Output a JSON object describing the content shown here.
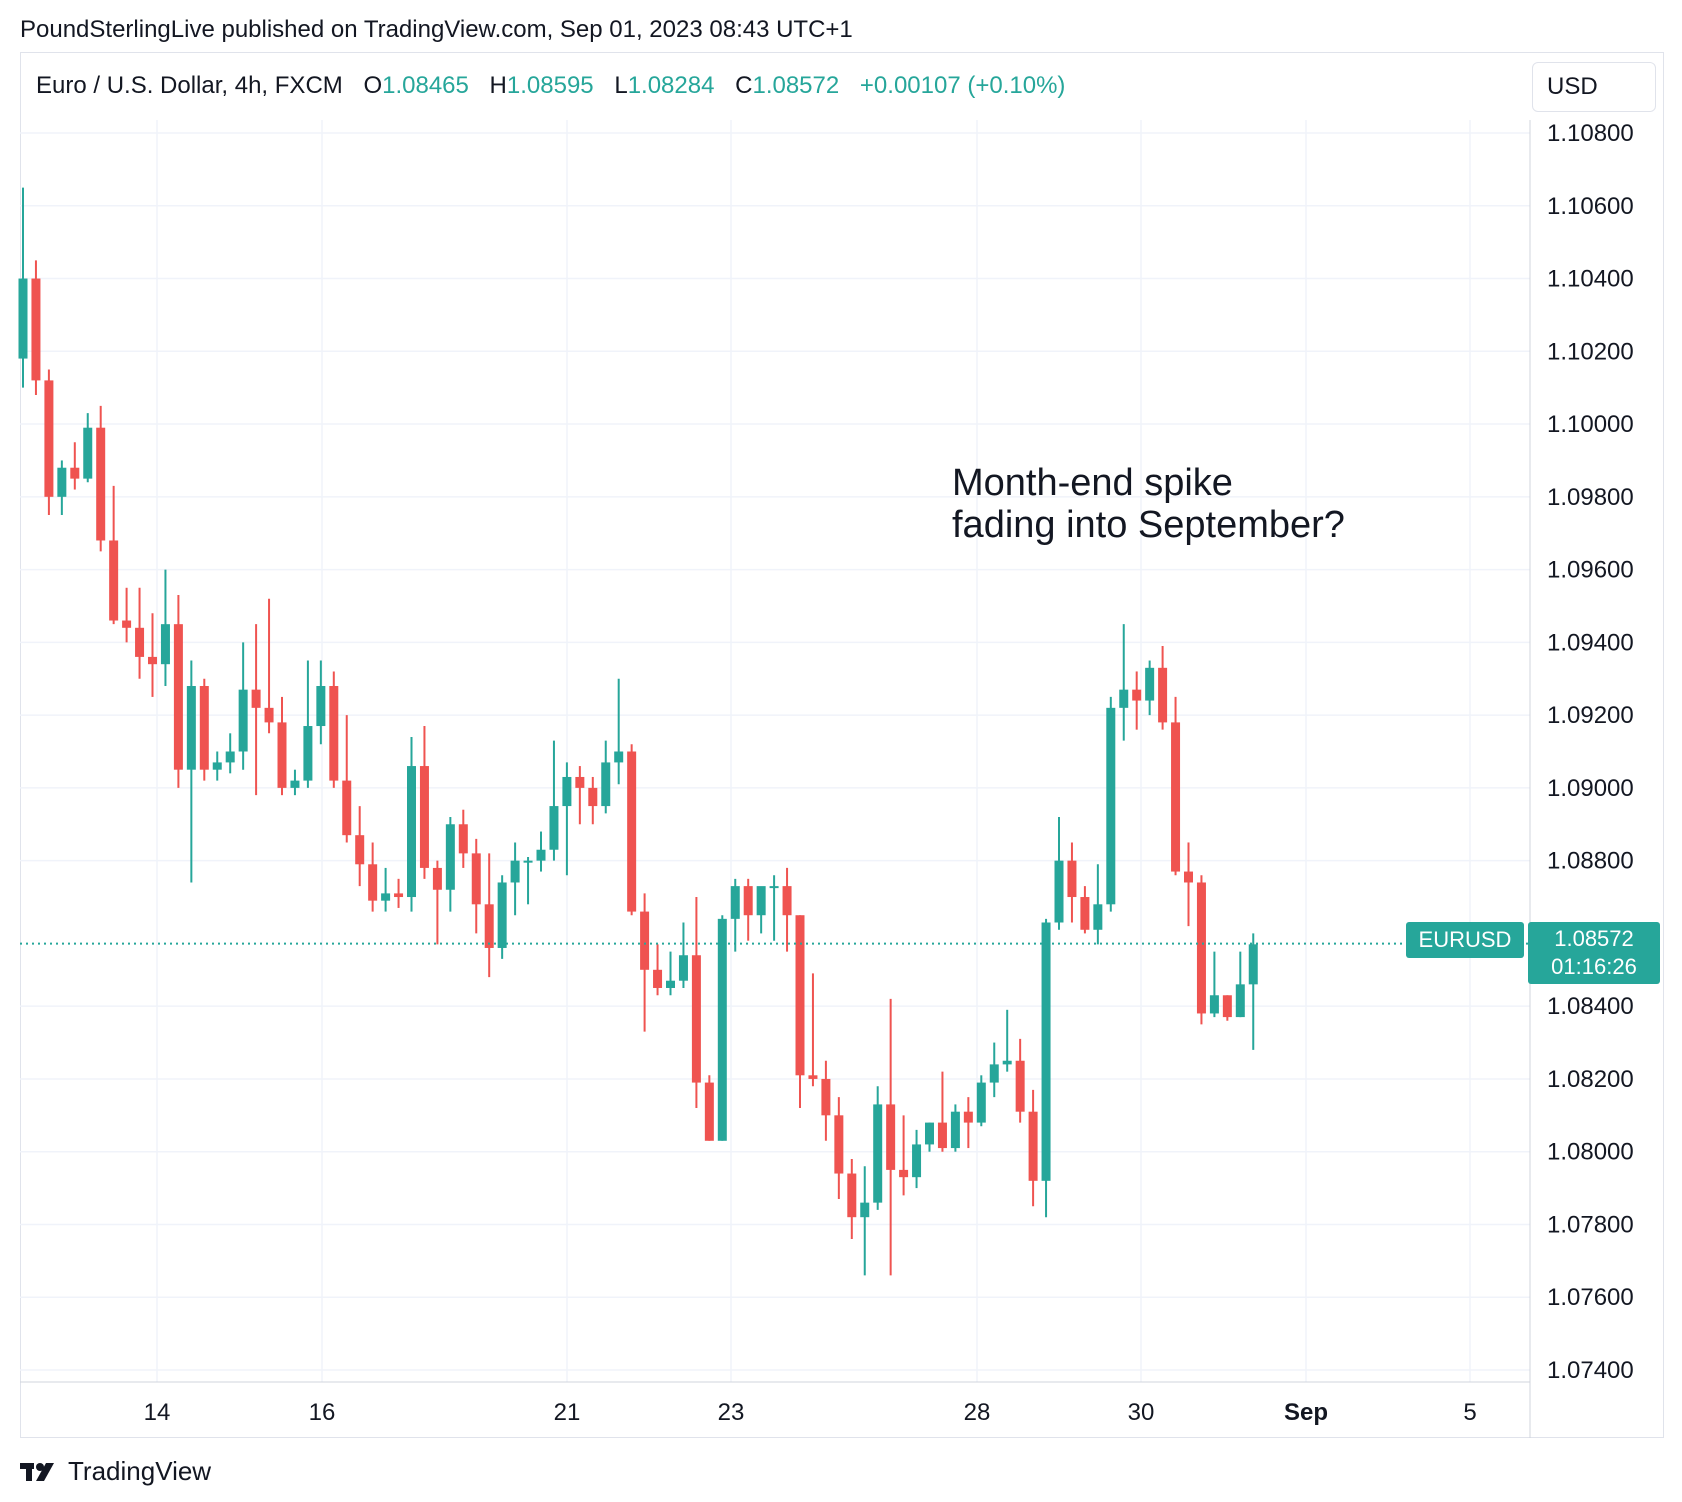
{
  "header": {
    "published_by": "PoundSterlingLive published on TradingView.com, Sep 01, 2023 08:43 UTC+1"
  },
  "legend": {
    "symbol": "Euro / U.S. Dollar, 4h, FXCM",
    "open_label": "O",
    "open": "1.08465",
    "high_label": "H",
    "high": "1.08595",
    "low_label": "L",
    "low": "1.08284",
    "close_label": "C",
    "close": "1.08572",
    "change": "+0.00107 (+0.10%)"
  },
  "currency_button": "USD",
  "annotation": {
    "line1": "Month-end spike",
    "line2": "fading into September?"
  },
  "last_price": {
    "symbol": "EURUSD",
    "price": "1.08572",
    "countdown": "01:16:26"
  },
  "footer": {
    "brand": "TradingView",
    "logo_icon": "tradingview-logo-icon"
  },
  "colors": {
    "up": "#26a69a",
    "down": "#ef5350",
    "grid": "#f0f3fa",
    "axis_text": "#131722"
  },
  "chart_data": {
    "type": "candlestick",
    "title": "Euro / U.S. Dollar, 4h, FXCM",
    "ylim": [
      1.074,
      1.108
    ],
    "y_ticks": [
      "1.10800",
      "1.10600",
      "1.10400",
      "1.10200",
      "1.10000",
      "1.09800",
      "1.09600",
      "1.09400",
      "1.09200",
      "1.09000",
      "1.08800",
      "1.08400",
      "1.08200",
      "1.08000",
      "1.07800",
      "1.07600",
      "1.07400"
    ],
    "x_ticks": [
      "14",
      "16",
      "21",
      "23",
      "28",
      "30",
      "Sep",
      "5"
    ],
    "grid": true,
    "candles": [
      [
        1.1018,
        1.1065,
        1.101,
        1.104
      ],
      [
        1.104,
        1.1045,
        1.1008,
        1.1012
      ],
      [
        1.1012,
        1.1015,
        1.0975,
        1.098
      ],
      [
        1.098,
        1.099,
        1.0975,
        1.0988
      ],
      [
        1.0988,
        1.0995,
        1.0982,
        1.0985
      ],
      [
        1.0985,
        1.1003,
        1.0984,
        1.0999
      ],
      [
        1.0999,
        1.1005,
        1.0965,
        1.0968
      ],
      [
        1.0968,
        1.0983,
        1.0945,
        1.0946
      ],
      [
        1.0946,
        1.0955,
        1.094,
        1.0944
      ],
      [
        1.0944,
        1.0955,
        1.093,
        1.0936
      ],
      [
        1.0936,
        1.0948,
        1.0925,
        1.0934
      ],
      [
        1.0934,
        1.096,
        1.0928,
        1.0945
      ],
      [
        1.0945,
        1.0953,
        1.09,
        1.0905
      ],
      [
        1.0905,
        1.0935,
        1.0874,
        1.0928
      ],
      [
        1.0928,
        1.093,
        1.0902,
        1.0905
      ],
      [
        1.0905,
        1.091,
        1.0902,
        1.0907
      ],
      [
        1.0907,
        1.0915,
        1.0904,
        1.091
      ],
      [
        1.091,
        1.094,
        1.0905,
        1.0927
      ],
      [
        1.0927,
        1.0945,
        1.0898,
        1.0922
      ],
      [
        1.0922,
        1.0952,
        1.0915,
        1.0918
      ],
      [
        1.0918,
        1.0925,
        1.0898,
        1.09
      ],
      [
        1.09,
        1.0905,
        1.0898,
        1.0902
      ],
      [
        1.0902,
        1.0935,
        1.09,
        1.0917
      ],
      [
        1.0917,
        1.0935,
        1.0912,
        1.0928
      ],
      [
        1.0928,
        1.0932,
        1.09,
        1.0902
      ],
      [
        1.0902,
        1.092,
        1.0885,
        1.0887
      ],
      [
        1.0887,
        1.0895,
        1.0873,
        1.0879
      ],
      [
        1.0879,
        1.0885,
        1.0866,
        1.0869
      ],
      [
        1.0869,
        1.0878,
        1.0866,
        1.0871
      ],
      [
        1.0871,
        1.0875,
        1.0867,
        1.087
      ],
      [
        1.087,
        1.0914,
        1.0866,
        1.0906
      ],
      [
        1.0906,
        1.0917,
        1.0875,
        1.0878
      ],
      [
        1.0878,
        1.088,
        1.0857,
        1.0872
      ],
      [
        1.0872,
        1.0892,
        1.0866,
        1.089
      ],
      [
        1.089,
        1.0894,
        1.0878,
        1.0882
      ],
      [
        1.0882,
        1.0886,
        1.086,
        1.0868
      ],
      [
        1.0868,
        1.0882,
        1.0848,
        1.0856
      ],
      [
        1.0856,
        1.0876,
        1.0853,
        1.0874
      ],
      [
        1.0874,
        1.0885,
        1.0865,
        1.088
      ],
      [
        1.088,
        1.0881,
        1.0868,
        1.088
      ],
      [
        1.088,
        1.0888,
        1.0877,
        1.0883
      ],
      [
        1.0883,
        1.0913,
        1.088,
        1.0895
      ],
      [
        1.0895,
        1.0907,
        1.0876,
        1.0903
      ],
      [
        1.0903,
        1.0906,
        1.089,
        1.09
      ],
      [
        1.09,
        1.0903,
        1.089,
        1.0895
      ],
      [
        1.0895,
        1.0913,
        1.0893,
        1.0907
      ],
      [
        1.0907,
        1.093,
        1.0901,
        1.091
      ],
      [
        1.091,
        1.0912,
        1.0865,
        1.0866
      ],
      [
        1.0866,
        1.0871,
        1.0833,
        1.085
      ],
      [
        1.085,
        1.0857,
        1.0843,
        1.0845
      ],
      [
        1.0845,
        1.0855,
        1.0843,
        1.0847
      ],
      [
        1.0847,
        1.0863,
        1.0845,
        1.0854
      ],
      [
        1.0854,
        1.087,
        1.0812,
        1.0819
      ],
      [
        1.0819,
        1.0821,
        1.0803,
        1.0803
      ],
      [
        1.0803,
        1.0865,
        1.0803,
        1.0864
      ],
      [
        1.0864,
        1.0875,
        1.0855,
        1.0873
      ],
      [
        1.0873,
        1.0875,
        1.0858,
        1.0865
      ],
      [
        1.0865,
        1.0872,
        1.086,
        1.0873
      ],
      [
        1.0873,
        1.0876,
        1.0858,
        1.0873
      ],
      [
        1.0873,
        1.0878,
        1.0855,
        1.0865
      ],
      [
        1.0865,
        1.0865,
        1.0812,
        1.0821
      ],
      [
        1.0821,
        1.0849,
        1.0818,
        1.082
      ],
      [
        1.082,
        1.0825,
        1.0803,
        1.081
      ],
      [
        1.081,
        1.0815,
        1.0787,
        1.0794
      ],
      [
        1.0794,
        1.0798,
        1.0776,
        1.0782
      ],
      [
        1.0782,
        1.0796,
        1.0766,
        1.0786
      ],
      [
        1.0786,
        1.0818,
        1.0784,
        1.0813
      ],
      [
        1.0813,
        1.0842,
        1.0766,
        1.0795
      ],
      [
        1.0795,
        1.081,
        1.0788,
        1.0793
      ],
      [
        1.0793,
        1.0806,
        1.079,
        1.0802
      ],
      [
        1.0802,
        1.0808,
        1.08,
        1.0808
      ],
      [
        1.0808,
        1.0822,
        1.08,
        1.0801
      ],
      [
        1.0801,
        1.0813,
        1.08,
        1.0811
      ],
      [
        1.0811,
        1.0815,
        1.0801,
        1.0808
      ],
      [
        1.0808,
        1.0821,
        1.0807,
        1.0819
      ],
      [
        1.0819,
        1.083,
        1.0815,
        1.0824
      ],
      [
        1.0824,
        1.0839,
        1.0822,
        1.0825
      ],
      [
        1.0825,
        1.0831,
        1.0808,
        1.0811
      ],
      [
        1.0811,
        1.0817,
        1.0785,
        1.0792
      ],
      [
        1.0792,
        1.0864,
        1.0782,
        1.0863
      ],
      [
        1.0863,
        1.0892,
        1.0861,
        1.088
      ],
      [
        1.088,
        1.0885,
        1.0863,
        1.087
      ],
      [
        1.087,
        1.0873,
        1.086,
        1.0861
      ],
      [
        1.0861,
        1.0879,
        1.0857,
        1.0868
      ],
      [
        1.0868,
        1.0925,
        1.0866,
        1.0922
      ],
      [
        1.0922,
        1.0945,
        1.0913,
        1.0927
      ],
      [
        1.0927,
        1.0932,
        1.0916,
        1.0924
      ],
      [
        1.0924,
        1.0935,
        1.092,
        1.0933
      ],
      [
        1.0933,
        1.0939,
        1.0916,
        1.0918
      ],
      [
        1.0918,
        1.0925,
        1.0876,
        1.0877
      ],
      [
        1.0877,
        1.0885,
        1.0862,
        1.0874
      ],
      [
        1.0874,
        1.0876,
        1.0835,
        1.0838
      ],
      [
        1.0838,
        1.0855,
        1.0837,
        1.0843
      ],
      [
        1.0843,
        1.0843,
        1.0836,
        1.0837
      ],
      [
        1.0837,
        1.0855,
        1.0837,
        1.0846
      ],
      [
        1.0846,
        1.086,
        1.0828,
        1.0857
      ]
    ]
  }
}
